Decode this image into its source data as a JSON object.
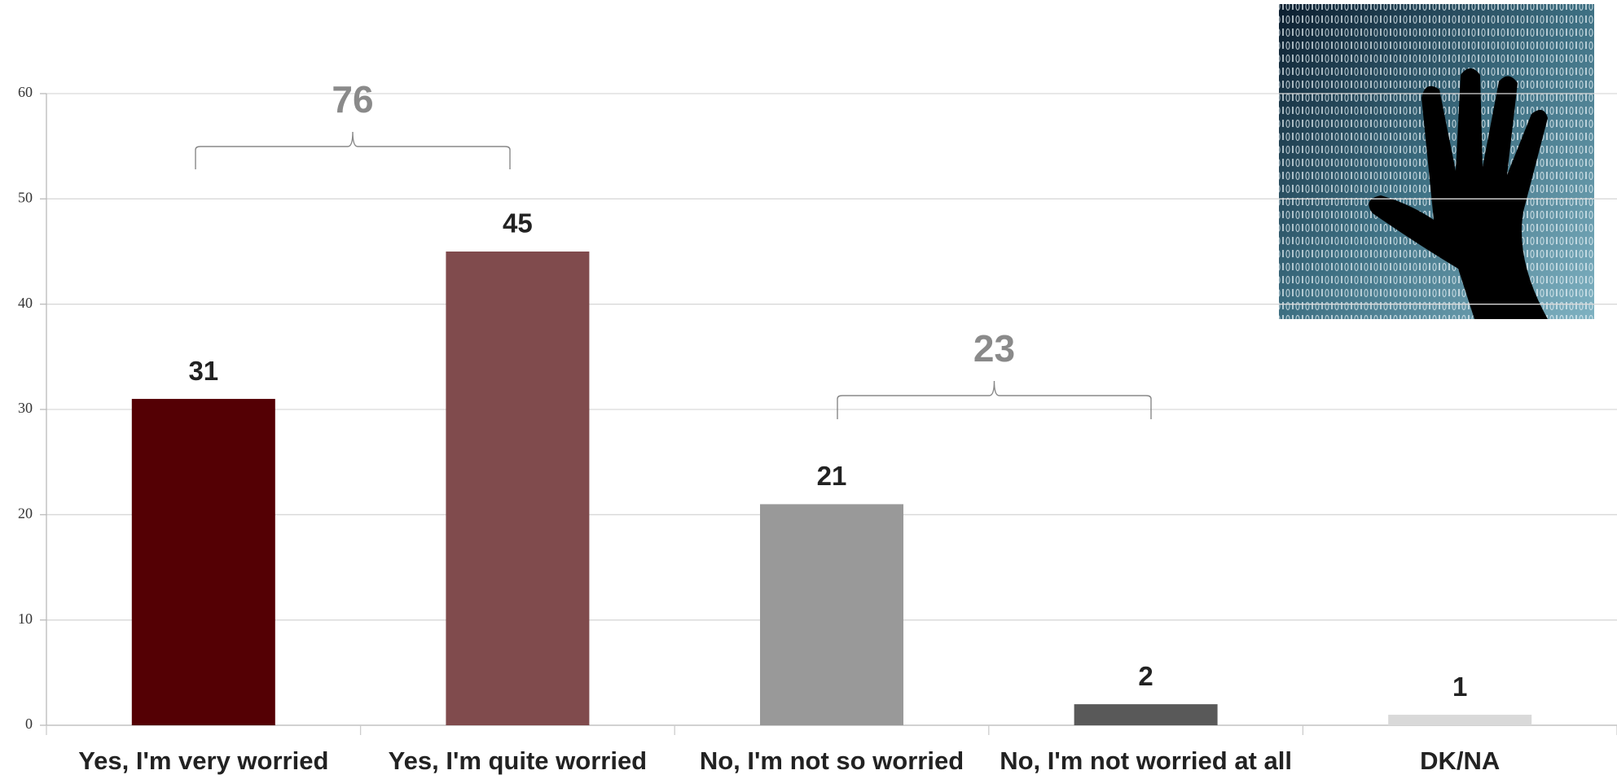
{
  "chart_data": {
    "type": "bar",
    "categories": [
      "Yes, I'm very worried",
      "Yes, I'm quite worried",
      "No, I'm not so worried",
      "No, I'm not worried at all",
      "DK/NA"
    ],
    "values": [
      31,
      45,
      21,
      2,
      1
    ],
    "colors": [
      "#540004",
      "#804b4d",
      "#999999",
      "#595959",
      "#d9d9d9"
    ],
    "ylim": [
      0,
      60
    ],
    "yticks": [
      0,
      10,
      20,
      30,
      40,
      50,
      60
    ],
    "grid": true,
    "annotations": [
      {
        "text": "76"
      },
      {
        "text": "23"
      }
    ]
  }
}
